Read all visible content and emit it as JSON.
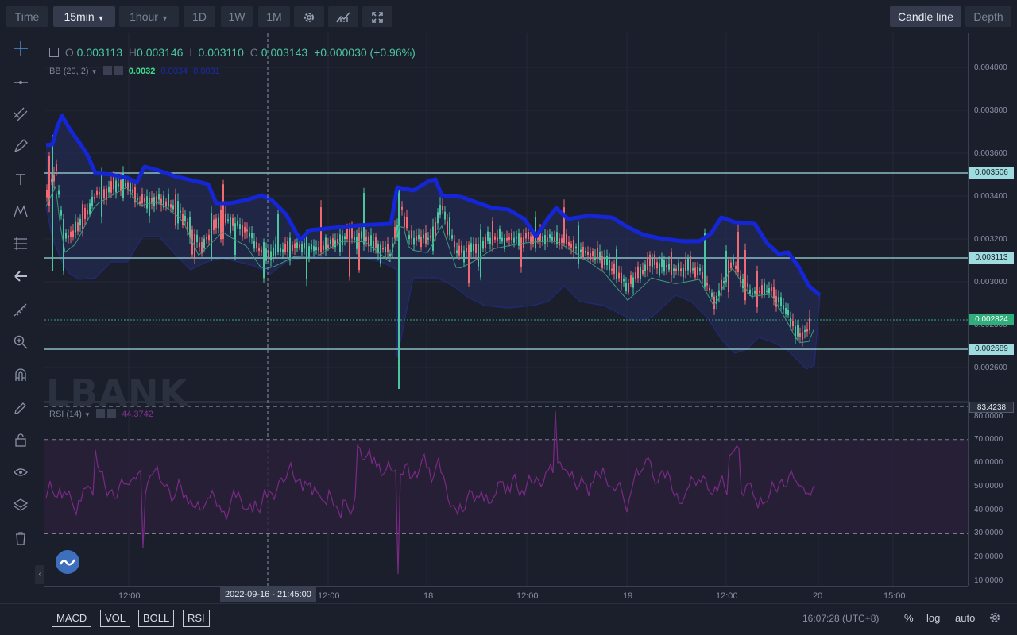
{
  "toolbar": {
    "time": "Time",
    "interval_15min": "15min",
    "interval_1hour": "1hour",
    "interval_1d": "1D",
    "interval_1w": "1W",
    "interval_1m": "1M",
    "candle_line": "Candle line",
    "depth": "Depth"
  },
  "ohlc": {
    "o_label": "O",
    "o_value": "0.003113",
    "h_label": "H",
    "h_value": "0.003146",
    "l_label": "L",
    "l_value": "0.003110",
    "c_label": "C",
    "c_value": "0.003143",
    "change": "+0.000030 (+0.96%)"
  },
  "bb": {
    "label": "BB (20, 2)",
    "v1": "0.0032",
    "v2": "0.0034",
    "v3": "0.0031"
  },
  "rsi": {
    "label": "RSI (14)",
    "value": "44.3742"
  },
  "watermark": "LBANK",
  "price_axis": [
    "0.004000",
    "0.003800",
    "0.003600",
    "0.003400",
    "0.003200",
    "0.003000",
    "0.002800",
    "0.002600"
  ],
  "price_tags": {
    "upper": "0.003506",
    "mid": "0.003113",
    "current": "0.002824",
    "lower": "0.002689"
  },
  "rsi_axis": [
    "80.0000",
    "70.0000",
    "60.0000",
    "50.0000",
    "40.0000",
    "30.0000",
    "20.0000",
    "10.0000"
  ],
  "rsi_tag": "83.4238",
  "time_axis": [
    "12:00",
    "12:00",
    "18",
    "12:00",
    "19",
    "12:00",
    "20",
    "15:00"
  ],
  "crosshair_time": "2022-09-16 - 21:45:00",
  "bottom": {
    "macd": "MACD",
    "vol": "VOL",
    "boll": "BOLL",
    "rsi": "RSI",
    "clock": "16:07:28 (UTC+8)",
    "percent": "%",
    "log": "log",
    "auto": "auto"
  },
  "colors": {
    "up": "#4bc4a0",
    "down": "#ef6a72",
    "bb_upper": "#1526d6",
    "bb_fill": "#232a4f",
    "rsi": "#7a2a86",
    "tag_teal": "#9fdce0",
    "tag_current": "#2fae7c"
  }
}
